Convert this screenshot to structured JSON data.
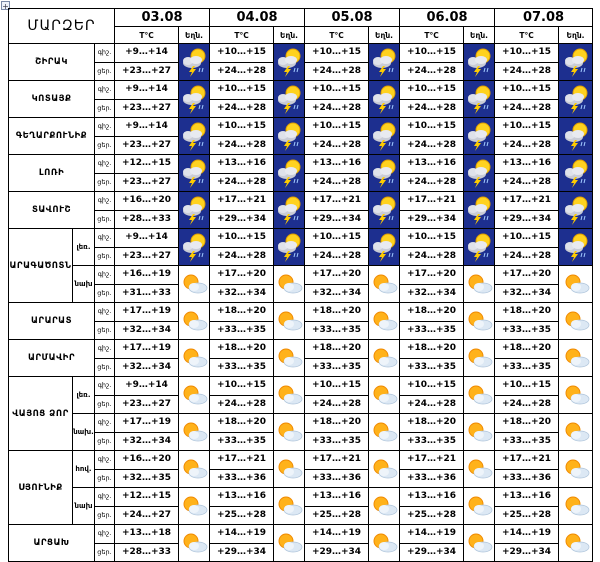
{
  "handle_icon": "move-handle-icon",
  "table": {
    "title": "ՄԱՐԶԵՐ",
    "dates": [
      "03.08",
      "04.08",
      "05.08",
      "06.08",
      "07.08"
    ],
    "temp_label": "T°C",
    "weather_label": "Եղն.",
    "label_night": "գիշ.",
    "label_day": "ցեր."
  },
  "rows": [
    {
      "region": "ՇԻՐԱԿ",
      "sub": "",
      "icon": "thunderstorm-icon",
      "days": [
        {
          "night": "+9…+14",
          "day": "+23…+27"
        },
        {
          "night": "+10…+15",
          "day": "+24…+28"
        },
        {
          "night": "+10…+15",
          "day": "+24…+28"
        },
        {
          "night": "+10…+15",
          "day": "+24…+28"
        },
        {
          "night": "+10…+15",
          "day": "+24…+28"
        }
      ]
    },
    {
      "region": "ԿՈՏԱՅՔ",
      "sub": "",
      "icon": "thunderstorm-icon",
      "days": [
        {
          "night": "+9…+14",
          "day": "+23…+27"
        },
        {
          "night": "+10…+15",
          "day": "+24…+28"
        },
        {
          "night": "+10…+15",
          "day": "+24…+28"
        },
        {
          "night": "+10…+15",
          "day": "+24…+28"
        },
        {
          "night": "+10…+15",
          "day": "+24…+28"
        }
      ]
    },
    {
      "region": "ԳԵՂԱՐՔՈՒՆԻՔ",
      "sub": "",
      "icon": "thunderstorm-icon",
      "days": [
        {
          "night": "+9…+14",
          "day": "+23…+27"
        },
        {
          "night": "+10…+15",
          "day": "+24…+28"
        },
        {
          "night": "+10…+15",
          "day": "+24…+28"
        },
        {
          "night": "+10…+15",
          "day": "+24…+28"
        },
        {
          "night": "+10…+15",
          "day": "+24…+28"
        }
      ]
    },
    {
      "region": "ԼՈՌԻ",
      "sub": "",
      "icon": "thunderstorm-icon",
      "days": [
        {
          "night": "+12…+15",
          "day": "+23…+27"
        },
        {
          "night": "+13…+16",
          "day": "+24…+28"
        },
        {
          "night": "+13…+16",
          "day": "+24…+28"
        },
        {
          "night": "+13…+16",
          "day": "+24…+28"
        },
        {
          "night": "+13…+16",
          "day": "+24…+28"
        }
      ]
    },
    {
      "region": "ՏԱՎՈՒՇ",
      "sub": "",
      "icon": "thunderstorm-icon",
      "days": [
        {
          "night": "+16…+20",
          "day": "+28…+33"
        },
        {
          "night": "+17…+21",
          "day": "+29…+34"
        },
        {
          "night": "+17…+21",
          "day": "+29…+34"
        },
        {
          "night": "+17…+21",
          "day": "+29…+34"
        },
        {
          "night": "+17…+21",
          "day": "+29…+34"
        }
      ]
    },
    {
      "region": "ԱՐԱԳԱԾՈՏՆ",
      "sub": "լեռ.",
      "icon": "thunderstorm-icon",
      "days": [
        {
          "night": "+9…+14",
          "day": "+23…+27"
        },
        {
          "night": "+10…+15",
          "day": "+24…+28"
        },
        {
          "night": "+10…+15",
          "day": "+24…+28"
        },
        {
          "night": "+10…+15",
          "day": "+24…+28"
        },
        {
          "night": "+10…+15",
          "day": "+24…+28"
        }
      ]
    },
    {
      "region": "",
      "sub": "նախ",
      "icon": "sun-cloud-icon",
      "days": [
        {
          "night": "+16…+19",
          "day": "+31…+33"
        },
        {
          "night": "+17…+20",
          "day": "+32…+34"
        },
        {
          "night": "+17…+20",
          "day": "+32…+34"
        },
        {
          "night": "+17…+20",
          "day": "+32…+34"
        },
        {
          "night": "+17…+20",
          "day": "+32…+34"
        }
      ]
    },
    {
      "region": "ԱՐԱՐԱՏ",
      "sub": "",
      "icon": "sun-cloud-icon",
      "days": [
        {
          "night": "+17…+19",
          "day": "+32…+34"
        },
        {
          "night": "+18…+20",
          "day": "+33…+35"
        },
        {
          "night": "+18…+20",
          "day": "+33…+35"
        },
        {
          "night": "+18…+20",
          "day": "+33…+35"
        },
        {
          "night": "+18…+20",
          "day": "+33…+35"
        }
      ]
    },
    {
      "region": "ԱՐՄԱՎԻՐ",
      "sub": "",
      "icon": "sun-cloud-icon",
      "days": [
        {
          "night": "+17…+19",
          "day": "+32…+34"
        },
        {
          "night": "+18…+20",
          "day": "+33…+35"
        },
        {
          "night": "+18…+20",
          "day": "+33…+35"
        },
        {
          "night": "+18…+20",
          "day": "+33…+35"
        },
        {
          "night": "+18…+20",
          "day": "+33…+35"
        }
      ]
    },
    {
      "region": "ՎԱՅՈՑ ՁՈՐ",
      "sub": "լեռ.",
      "icon": "sun-cloud-icon",
      "days": [
        {
          "night": "+9…+14",
          "day": "+23…+27"
        },
        {
          "night": "+10…+15",
          "day": "+24…+28"
        },
        {
          "night": "+10…+15",
          "day": "+24…+28"
        },
        {
          "night": "+10…+15",
          "day": "+24…+28"
        },
        {
          "night": "+10…+15",
          "day": "+24…+28"
        }
      ]
    },
    {
      "region": "",
      "sub": "նախ.",
      "icon": "sun-cloud-icon",
      "days": [
        {
          "night": "+17…+19",
          "day": "+32…+34"
        },
        {
          "night": "+18…+20",
          "day": "+33…+35"
        },
        {
          "night": "+18…+20",
          "day": "+33…+35"
        },
        {
          "night": "+18…+20",
          "day": "+33…+35"
        },
        {
          "night": "+18…+20",
          "day": "+33…+35"
        }
      ]
    },
    {
      "region": "ՍՅՈՒՆԻՔ",
      "sub": "հով.",
      "icon": "sun-cloud-icon",
      "days": [
        {
          "night": "+16…+20",
          "day": "+32…+35"
        },
        {
          "night": "+17…+21",
          "day": "+33…+36"
        },
        {
          "night": "+17…+21",
          "day": "+33…+36"
        },
        {
          "night": "+17…+21",
          "day": "+33…+36"
        },
        {
          "night": "+17…+21",
          "day": "+33…+36"
        }
      ]
    },
    {
      "region": "",
      "sub": "նախ",
      "icon": "sun-cloud-icon",
      "days": [
        {
          "night": "+12…+15",
          "day": "+24…+27"
        },
        {
          "night": "+13…+16",
          "day": "+25…+28"
        },
        {
          "night": "+13…+16",
          "day": "+25…+28"
        },
        {
          "night": "+13…+16",
          "day": "+25…+28"
        },
        {
          "night": "+13…+16",
          "day": "+25…+28"
        }
      ]
    },
    {
      "region": "ԱՐՑԱԽ",
      "sub": "",
      "icon": "sun-cloud-icon",
      "days": [
        {
          "night": "+13…+18",
          "day": "+28…+33"
        },
        {
          "night": "+14…+19",
          "day": "+29…+34"
        },
        {
          "night": "+14…+19",
          "day": "+29…+34"
        },
        {
          "night": "+14…+19",
          "day": "+29…+34"
        },
        {
          "night": "+14…+19",
          "day": "+29…+34"
        }
      ]
    }
  ]
}
